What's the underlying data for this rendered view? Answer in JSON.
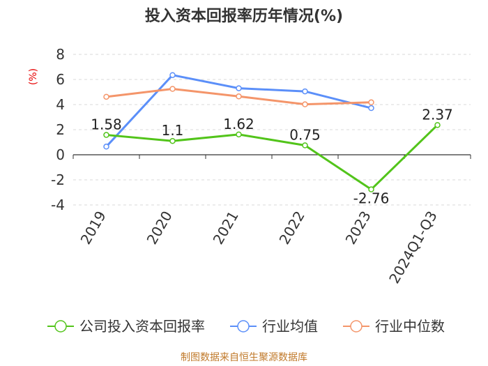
{
  "chart_data": {
    "type": "line",
    "title": "投入资本回报率历年情况(%)",
    "unit_label": "(%)",
    "categories": [
      "2019",
      "2020",
      "2021",
      "2022",
      "2023",
      "2024Q1-Q3"
    ],
    "ylim": [
      -4,
      8
    ],
    "yticks": [
      8,
      6,
      4,
      2,
      0,
      -2,
      -4
    ],
    "grid": true,
    "legend_position": "bottom",
    "series": [
      {
        "name": "公司投入资本回报率",
        "color": "#52c41a",
        "values": [
          1.58,
          1.1,
          1.62,
          0.75,
          -2.76,
          2.37
        ],
        "labels": [
          "1.58",
          "1.1",
          "1.62",
          "0.75",
          "-2.76",
          "2.37"
        ]
      },
      {
        "name": "行业均值",
        "color": "#5b8ff9",
        "values": [
          0.65,
          6.35,
          5.3,
          5.05,
          3.72,
          null
        ]
      },
      {
        "name": "行业中位数",
        "color": "#f4956a",
        "values": [
          4.62,
          5.25,
          4.65,
          4.02,
          4.18,
          null
        ]
      }
    ]
  },
  "source": "制图数据来自恒生聚源数据库"
}
